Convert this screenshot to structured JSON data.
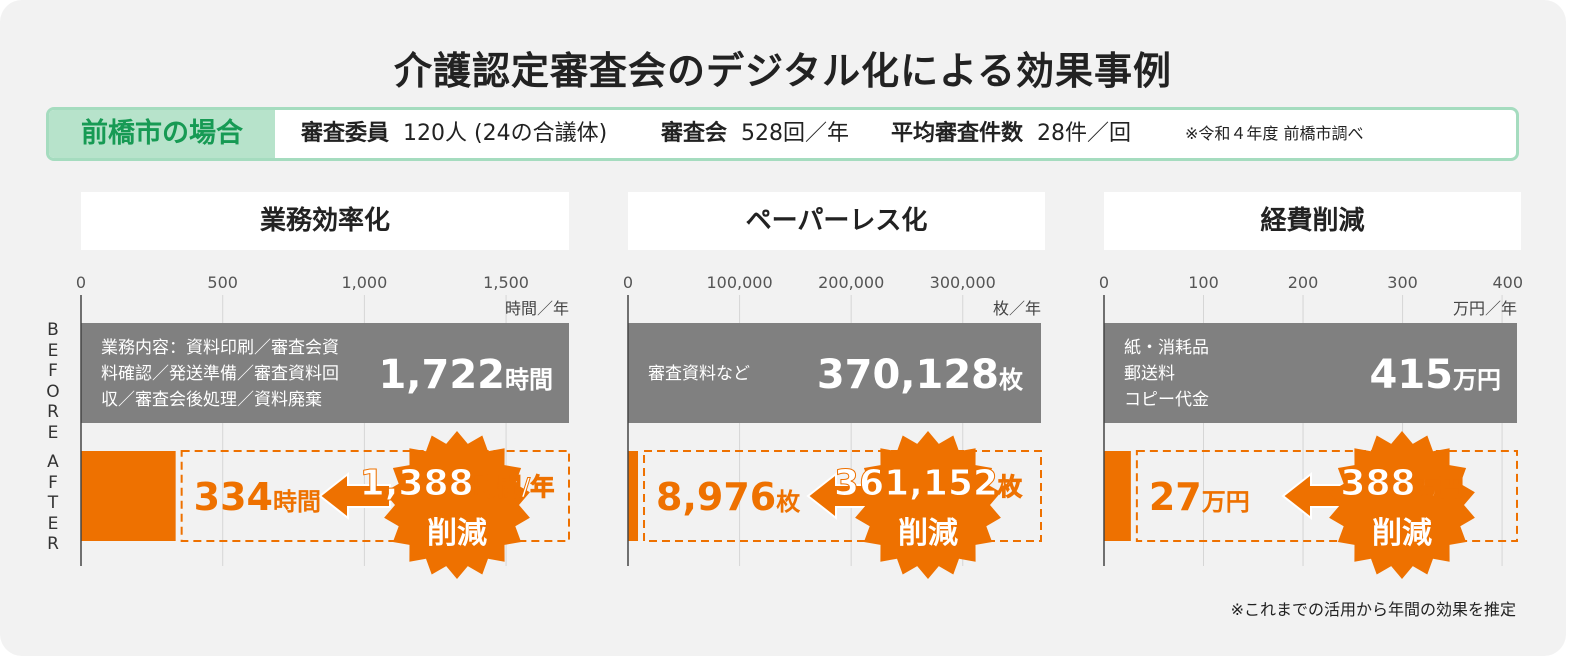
{
  "title": "介護認定審査会のデジタル化による効果事例",
  "info": {
    "label": "前橋市の場合",
    "members_label": "審査委員",
    "members_value": "120人",
    "members_note": "(24の合議体)",
    "meetings_label": "審査会",
    "meetings_value": "528回／年",
    "avg_label": "平均審査件数",
    "avg_value": "28件／回",
    "source": "※令和４年度 前橋市調べ"
  },
  "row_labels": {
    "before": "BEFORE",
    "after": "AFTER"
  },
  "footnote": "※これまでの活用から年間の効果を推定",
  "colors": {
    "before": "#808080",
    "after": "#ee7100",
    "burst": "#ee7100",
    "header_green": "#179a54",
    "info_border": "#a5dcbf"
  },
  "chart_data": [
    {
      "type": "bar",
      "title": "業務効率化",
      "unit_label": "時間／年",
      "ticks": [
        0,
        500,
        1000,
        1500
      ],
      "tick_labels": [
        "0",
        "500",
        "1,000",
        "1,500"
      ],
      "xlim": [
        0,
        1722
      ],
      "before": {
        "value": 1722,
        "display": "1,722",
        "unit": "時間",
        "desc": [
          "業務内容：資料印刷／審査会資",
          "料確認／発送準備／審査資料回",
          "収／審査会後処理／資料廃棄"
        ]
      },
      "after": {
        "value": 334,
        "display": "334",
        "unit": "時間"
      },
      "reduction": {
        "value": 1388,
        "display": "1,388",
        "unit": "時間/年",
        "label": "削減"
      }
    },
    {
      "type": "bar",
      "title": "ペーパーレス化",
      "unit_label": "枚／年",
      "ticks": [
        0,
        100000,
        200000,
        300000
      ],
      "tick_labels": [
        "0",
        "100,000",
        "200,000",
        "300,000"
      ],
      "xlim": [
        0,
        370128
      ],
      "before": {
        "value": 370128,
        "display": "370,128",
        "unit": "枚",
        "desc": [
          "審査資料など"
        ]
      },
      "after": {
        "value": 8976,
        "display": "8,976",
        "unit": "枚"
      },
      "reduction": {
        "value": 361152,
        "display": "361,152",
        "unit": "枚",
        "label": "削減"
      }
    },
    {
      "type": "bar",
      "title": "経費削減",
      "unit_label": "万円／年",
      "ticks": [
        0,
        100,
        200,
        300,
        400
      ],
      "tick_labels": [
        "0",
        "100",
        "200",
        "300",
        "400"
      ],
      "xlim": [
        0,
        415
      ],
      "before": {
        "value": 415,
        "display": "415",
        "unit": "万円",
        "desc": [
          "紙・消耗品",
          "郵送料",
          "コピー代金"
        ]
      },
      "after": {
        "value": 27,
        "display": "27",
        "unit": "万円"
      },
      "reduction": {
        "value": 388,
        "display": "388",
        "unit": "万円",
        "label": "削減"
      }
    }
  ]
}
